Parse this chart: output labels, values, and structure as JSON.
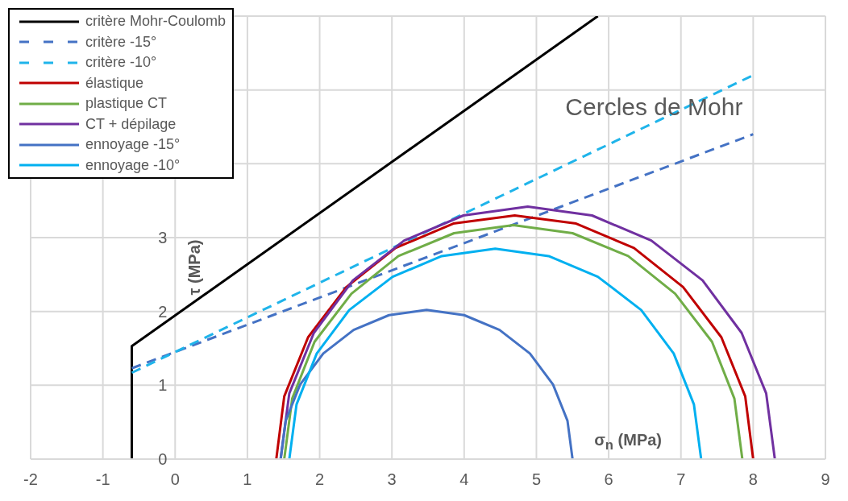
{
  "chart_data": {
    "type": "line",
    "xlabel": "σ$_{n}$ (MPa)",
    "ylabel": "τ (MPa)",
    "annotations": [
      "Cercles de Mohr"
    ],
    "xlim": [
      -2,
      9
    ],
    "xticks": [
      -2,
      -1,
      0,
      1,
      2,
      3,
      4,
      5,
      6,
      7,
      8,
      9
    ],
    "ylim": [
      0,
      6
    ],
    "yticks": [
      0,
      1,
      2,
      3,
      {
        "value": 4,
        "label": null
      },
      {
        "value": 5,
        "label": null
      },
      {
        "value": 6,
        "label": null
      }
    ],
    "grid": true,
    "legend": "top left",
    "marker": "none",
    "series": [
      {
        "name": "critère Mohr-Coulomb",
        "color": "#000000",
        "line_style": "solid",
        "x": [
          -0.6,
          -0.6,
          5.85
        ],
        "values": [
          0,
          1.53,
          6
        ]
      },
      {
        "name": "critère -15°",
        "color": "#4472c4",
        "line_style": "dashed",
        "x": [
          -0.6,
          8
        ],
        "values": [
          1.23,
          4.4
        ]
      },
      {
        "name": "critère -10°",
        "color": "#1fb4ea",
        "line_style": "dashed",
        "x": [
          -0.6,
          8
        ],
        "values": [
          1.17,
          5.2
        ]
      },
      {
        "name": "élastique",
        "color": "#c00000",
        "line_style": "solid",
        "x": [
          1.4,
          1.51,
          1.84,
          2.37,
          3.05,
          3.85,
          4.7,
          5.55,
          6.35,
          7.03,
          7.56,
          7.89,
          8.0
        ],
        "values": [
          0,
          0.85,
          1.65,
          2.33,
          2.86,
          3.19,
          3.3,
          3.19,
          2.86,
          2.33,
          1.65,
          0.85,
          0
        ]
      },
      {
        "name": "plastique CT",
        "color": "#70ad47",
        "line_style": "solid",
        "x": [
          1.51,
          1.62,
          1.93,
          2.44,
          3.09,
          3.86,
          4.68,
          5.5,
          6.27,
          6.92,
          7.43,
          7.74,
          7.85
        ],
        "values": [
          0,
          0.82,
          1.59,
          2.24,
          2.75,
          3.06,
          3.17,
          3.06,
          2.75,
          2.24,
          1.59,
          0.82,
          0
        ]
      },
      {
        "name": "CT + dépilage",
        "color": "#7030a0",
        "line_style": "solid",
        "x": [
          1.46,
          1.58,
          1.92,
          2.46,
          3.17,
          3.99,
          4.88,
          5.77,
          6.59,
          7.3,
          7.84,
          8.18,
          8.3
        ],
        "values": [
          0,
          0.89,
          1.71,
          2.42,
          2.96,
          3.3,
          3.42,
          3.3,
          2.96,
          2.42,
          1.71,
          0.89,
          0
        ]
      },
      {
        "name": "ennoyage -15°",
        "color": "#4472c4",
        "line_style": "solid",
        "x": [
          1.46,
          1.53,
          1.73,
          2.05,
          2.47,
          2.96,
          3.48,
          4.0,
          4.49,
          4.91,
          5.23,
          5.43,
          5.5
        ],
        "values": [
          0,
          0.52,
          1.01,
          1.43,
          1.75,
          1.95,
          2.02,
          1.95,
          1.75,
          1.43,
          1.01,
          0.52,
          0
        ]
      },
      {
        "name": "ennoyage -10°",
        "color": "#00b0f0",
        "line_style": "solid",
        "x": [
          1.58,
          1.68,
          1.96,
          2.41,
          3.01,
          3.69,
          4.43,
          5.17,
          5.85,
          6.45,
          6.9,
          7.18,
          7.28
        ],
        "values": [
          0,
          0.74,
          1.43,
          2.02,
          2.47,
          2.75,
          2.85,
          2.75,
          2.47,
          2.02,
          1.43,
          0.74,
          0
        ]
      }
    ]
  }
}
